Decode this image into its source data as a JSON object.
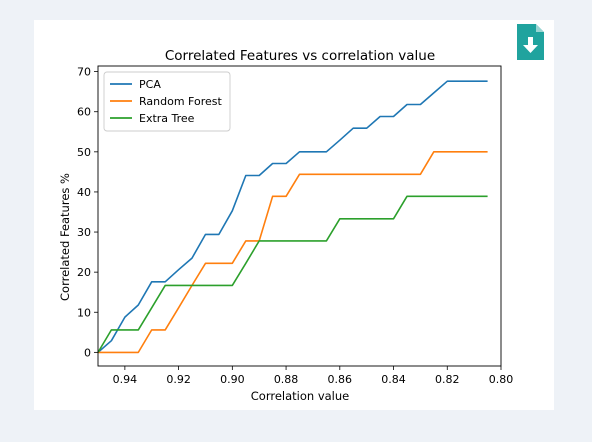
{
  "chart_data": {
    "type": "line",
    "title": "Correlated Features vs correlation value",
    "xlabel": "Correlation value",
    "ylabel": "Correlated Features %",
    "xlim": [
      0.95,
      0.8
    ],
    "ylim": [
      -3.4,
      71.4
    ],
    "x_ticks": [
      0.94,
      0.92,
      0.9,
      0.88,
      0.86,
      0.84,
      0.82,
      0.8
    ],
    "x_tick_labels": [
      "0.94",
      "0.92",
      "0.90",
      "0.88",
      "0.86",
      "0.84",
      "0.82",
      "0.80"
    ],
    "y_ticks": [
      0,
      10,
      20,
      30,
      40,
      50,
      60,
      70
    ],
    "y_tick_labels": [
      "0",
      "10",
      "20",
      "30",
      "40",
      "50",
      "60",
      "70"
    ],
    "grid": false,
    "legend_position": "top-left",
    "series": [
      {
        "name": "PCA",
        "color": "#1f77b4",
        "x": [
          0.95,
          0.945,
          0.94,
          0.935,
          0.93,
          0.925,
          0.92,
          0.915,
          0.91,
          0.905,
          0.9,
          0.895,
          0.89,
          0.885,
          0.88,
          0.875,
          0.87,
          0.865,
          0.86,
          0.855,
          0.85,
          0.845,
          0.84,
          0.835,
          0.83,
          0.825,
          0.82,
          0.815,
          0.81,
          0.805
        ],
        "values": [
          0,
          2.9,
          8.8,
          11.8,
          17.6,
          17.6,
          20.6,
          23.5,
          29.4,
          29.4,
          35.3,
          44.1,
          44.1,
          47.1,
          47.1,
          50.0,
          50.0,
          50.0,
          52.9,
          55.9,
          55.9,
          58.8,
          58.8,
          61.8,
          61.8,
          64.7,
          67.6,
          67.6,
          67.6,
          67.6
        ]
      },
      {
        "name": "Random Forest",
        "color": "#ff7f0e",
        "x": [
          0.95,
          0.945,
          0.94,
          0.935,
          0.93,
          0.925,
          0.92,
          0.915,
          0.91,
          0.905,
          0.9,
          0.895,
          0.89,
          0.885,
          0.88,
          0.875,
          0.87,
          0.865,
          0.86,
          0.855,
          0.85,
          0.845,
          0.84,
          0.835,
          0.83,
          0.825,
          0.82,
          0.815,
          0.81,
          0.805
        ],
        "values": [
          0,
          0,
          0,
          0,
          5.6,
          5.6,
          11.1,
          16.7,
          22.2,
          22.2,
          22.2,
          27.8,
          27.8,
          38.9,
          38.9,
          44.4,
          44.4,
          44.4,
          44.4,
          44.4,
          44.4,
          44.4,
          44.4,
          44.4,
          44.4,
          50.0,
          50.0,
          50.0,
          50.0,
          50.0
        ]
      },
      {
        "name": "Extra Tree",
        "color": "#2ca02c",
        "x": [
          0.95,
          0.945,
          0.94,
          0.935,
          0.93,
          0.925,
          0.92,
          0.915,
          0.91,
          0.905,
          0.9,
          0.895,
          0.89,
          0.885,
          0.88,
          0.875,
          0.87,
          0.865,
          0.86,
          0.855,
          0.85,
          0.845,
          0.84,
          0.835,
          0.83,
          0.825,
          0.82,
          0.815,
          0.81,
          0.805
        ],
        "values": [
          0,
          5.6,
          5.6,
          5.6,
          11.1,
          16.7,
          16.7,
          16.7,
          16.7,
          16.7,
          16.7,
          22.2,
          27.8,
          27.8,
          27.8,
          27.8,
          27.8,
          27.8,
          33.3,
          33.3,
          33.3,
          33.3,
          33.3,
          38.9,
          38.9,
          38.9,
          38.9,
          38.9,
          38.9,
          38.9
        ]
      }
    ]
  },
  "download_icon": "file-download-icon",
  "download_icon_color": "#20a39e"
}
